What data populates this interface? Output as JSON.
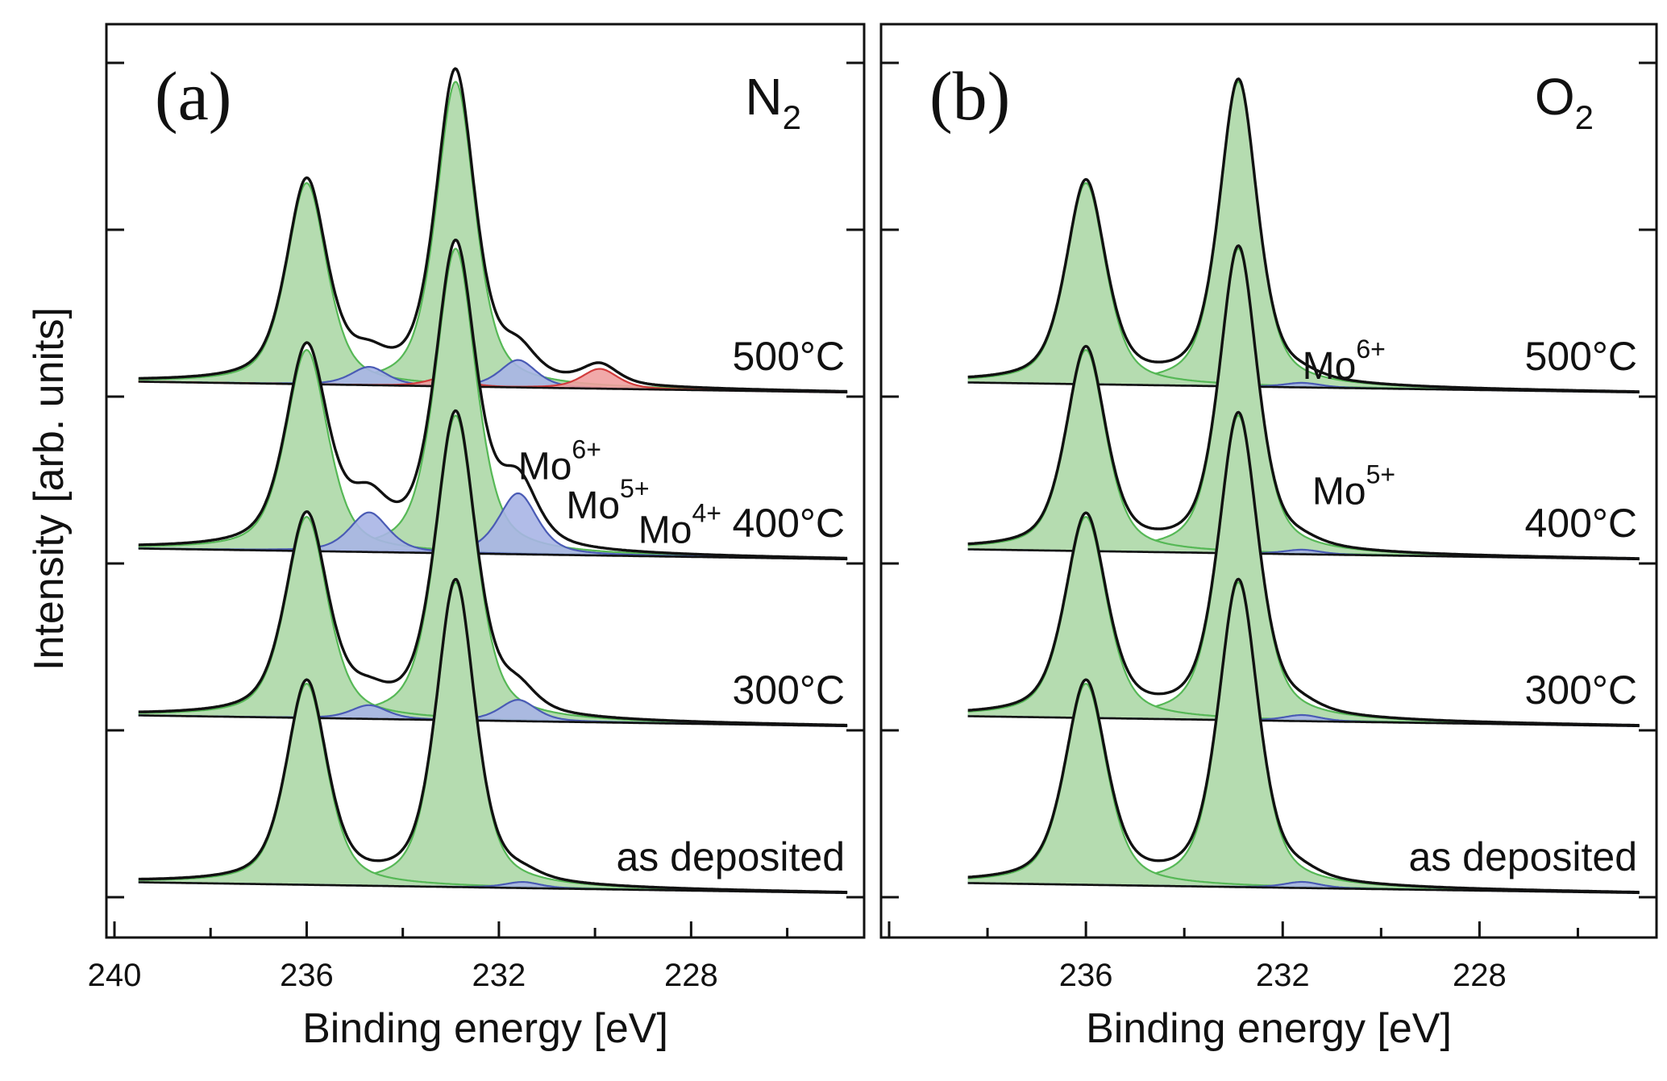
{
  "chart_data": [
    {
      "type": "line",
      "panel_label": "(a)",
      "gas": {
        "base": "N",
        "subscript": "2"
      },
      "xlabel": "Binding energy [eV]",
      "ylabel": "Intensity [arb. units]",
      "xlim": [
        240,
        224.5
      ],
      "x_reversed": true,
      "xticks": [
        240,
        236,
        232,
        228
      ],
      "yticks_labeled": false,
      "species_labels": [
        {
          "base": "Mo",
          "sup": "6+",
          "x": 231.6,
          "offset_units": 2.45
        },
        {
          "base": "Mo",
          "sup": "5+",
          "x": 230.6,
          "offset_units": 2.22
        },
        {
          "base": "Mo",
          "sup": "4+",
          "x": 229.1,
          "offset_units": 2.08
        }
      ],
      "series": [
        {
          "name": "as deposited",
          "offset_units": 0,
          "components": [
            {
              "species": "Mo6+",
              "kind": "3d5/2",
              "center": 232.9,
              "amplitude": 1.0,
              "width": 0.48
            },
            {
              "species": "Mo6+",
              "kind": "3d3/2",
              "center": 236.0,
              "amplitude": 0.66,
              "width": 0.5
            },
            {
              "species": "Mo5+",
              "kind": "3d5/2",
              "center": 231.5,
              "amplitude": 0.02,
              "width": 0.45
            }
          ]
        },
        {
          "name": "300°C",
          "offset_units": 1,
          "components": [
            {
              "species": "Mo6+",
              "kind": "3d5/2",
              "center": 232.9,
              "amplitude": 1.0,
              "width": 0.5
            },
            {
              "species": "Mo6+",
              "kind": "3d3/2",
              "center": 236.0,
              "amplitude": 0.66,
              "width": 0.52
            },
            {
              "species": "Mo5+",
              "kind": "3d5/2",
              "center": 231.6,
              "amplitude": 0.07,
              "width": 0.45
            },
            {
              "species": "Mo5+",
              "kind": "3d3/2",
              "center": 234.7,
              "amplitude": 0.045,
              "width": 0.45
            }
          ]
        },
        {
          "name": "400°C",
          "offset_units": 2,
          "components": [
            {
              "species": "Mo6+",
              "kind": "3d5/2",
              "center": 232.9,
              "amplitude": 1.0,
              "width": 0.5
            },
            {
              "species": "Mo6+",
              "kind": "3d3/2",
              "center": 236.0,
              "amplitude": 0.66,
              "width": 0.52
            },
            {
              "species": "Mo5+",
              "kind": "3d5/2",
              "center": 231.6,
              "amplitude": 0.2,
              "width": 0.48
            },
            {
              "species": "Mo5+",
              "kind": "3d3/2",
              "center": 234.7,
              "amplitude": 0.13,
              "width": 0.48
            }
          ]
        },
        {
          "name": "500°C",
          "offset_units": 3,
          "components": [
            {
              "species": "Mo6+",
              "kind": "3d5/2",
              "center": 232.9,
              "amplitude": 1.0,
              "width": 0.48
            },
            {
              "species": "Mo6+",
              "kind": "3d3/2",
              "center": 236.0,
              "amplitude": 0.66,
              "width": 0.5
            },
            {
              "species": "Mo5+",
              "kind": "3d5/2",
              "center": 231.6,
              "amplitude": 0.09,
              "width": 0.45
            },
            {
              "species": "Mo5+",
              "kind": "3d3/2",
              "center": 234.7,
              "amplitude": 0.06,
              "width": 0.45
            },
            {
              "species": "Mo4+",
              "kind": "3d5/2",
              "center": 229.9,
              "amplitude": 0.065,
              "width": 0.45
            },
            {
              "species": "Mo4+",
              "kind": "3d3/2",
              "center": 233.1,
              "amplitude": 0.03,
              "width": 0.45
            }
          ]
        }
      ]
    },
    {
      "type": "line",
      "panel_label": "(b)",
      "gas": {
        "base": "O",
        "subscript": "2"
      },
      "xlabel": "Binding energy [eV]",
      "ylabel": "",
      "xlim": [
        240,
        224.5
      ],
      "x_reversed": true,
      "xticks": [
        236,
        232,
        228
      ],
      "yticks_labeled": false,
      "species_labels": [
        {
          "base": "Mo",
          "sup": "6+",
          "x": 231.6,
          "offset_units": 3.05
        },
        {
          "base": "Mo",
          "sup": "5+",
          "x": 231.4,
          "offset_units": 2.3
        }
      ],
      "series": [
        {
          "name": "as deposited",
          "offset_units": 0,
          "components": [
            {
              "species": "Mo6+",
              "kind": "3d5/2",
              "center": 232.9,
              "amplitude": 1.0,
              "width": 0.48
            },
            {
              "species": "Mo6+",
              "kind": "3d3/2",
              "center": 236.0,
              "amplitude": 0.66,
              "width": 0.5
            },
            {
              "species": "Mo5+",
              "kind": "3d5/2",
              "center": 231.6,
              "amplitude": 0.02,
              "width": 0.45
            }
          ]
        },
        {
          "name": "300°C",
          "offset_units": 1,
          "components": [
            {
              "species": "Mo6+",
              "kind": "3d5/2",
              "center": 232.9,
              "amplitude": 1.0,
              "width": 0.48
            },
            {
              "species": "Mo6+",
              "kind": "3d3/2",
              "center": 236.0,
              "amplitude": 0.66,
              "width": 0.5
            },
            {
              "species": "Mo5+",
              "kind": "3d5/2",
              "center": 231.6,
              "amplitude": 0.02,
              "width": 0.45
            }
          ]
        },
        {
          "name": "400°C",
          "offset_units": 2,
          "components": [
            {
              "species": "Mo6+",
              "kind": "3d5/2",
              "center": 232.9,
              "amplitude": 1.0,
              "width": 0.46
            },
            {
              "species": "Mo6+",
              "kind": "3d3/2",
              "center": 236.0,
              "amplitude": 0.66,
              "width": 0.48
            },
            {
              "species": "Mo5+",
              "kind": "3d5/2",
              "center": 231.6,
              "amplitude": 0.015,
              "width": 0.45
            }
          ]
        },
        {
          "name": "500°C",
          "offset_units": 3,
          "components": [
            {
              "species": "Mo6+",
              "kind": "3d5/2",
              "center": 232.9,
              "amplitude": 1.0,
              "width": 0.46
            },
            {
              "species": "Mo6+",
              "kind": "3d3/2",
              "center": 236.0,
              "amplitude": 0.66,
              "width": 0.48
            },
            {
              "species": "Mo5+",
              "kind": "3d5/2",
              "center": 231.6,
              "amplitude": 0.015,
              "width": 0.45
            }
          ]
        }
      ]
    }
  ],
  "colors": {
    "mo6_fill": "#b5dcb0",
    "mo6_edge": "#56b856",
    "mo5_fill": "#a8b5e6",
    "mo5_edge": "#4a5bb5",
    "mo4_fill": "#f0a0a0",
    "mo4_edge": "#d23c3c",
    "envelope": "#111111",
    "baseline": "#111111",
    "frame": "#111111"
  }
}
